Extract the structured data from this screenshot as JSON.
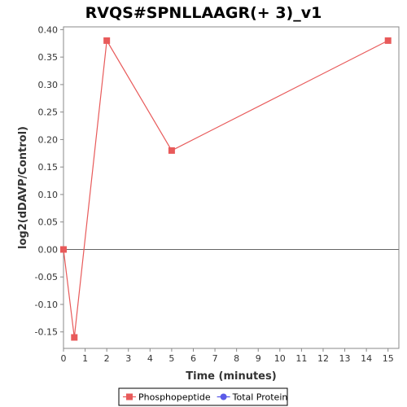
{
  "chart_data": {
    "type": "line",
    "title": "RVQS#SPNLLAAGR(+ 3)_v1",
    "xlabel": "Time (minutes)",
    "ylabel": "log2(dDAVP/Control)",
    "xlim": [
      0,
      15.5
    ],
    "ylim": [
      -0.18,
      0.405
    ],
    "x_ticks": [
      0,
      1,
      2,
      3,
      4,
      5,
      6,
      7,
      8,
      9,
      10,
      11,
      12,
      13,
      14,
      15
    ],
    "y_ticks": [
      -0.15,
      -0.1,
      -0.05,
      0.0,
      0.05,
      0.1,
      0.15,
      0.2,
      0.25,
      0.3,
      0.35,
      0.4
    ],
    "zero_line": true,
    "grid": false,
    "legend_position": "bottom",
    "series": [
      {
        "name": "Phosphopeptide",
        "color": "#e85a5a",
        "marker": "square",
        "points": [
          {
            "x": 0,
            "y": 0.0
          },
          {
            "x": 0.5,
            "y": -0.16
          },
          {
            "x": 2,
            "y": 0.38
          },
          {
            "x": 5,
            "y": 0.18
          },
          {
            "x": 15,
            "y": 0.38
          }
        ]
      },
      {
        "name": "Total Protein",
        "color": "#5a5ae8",
        "marker": "circle",
        "points": []
      }
    ]
  }
}
